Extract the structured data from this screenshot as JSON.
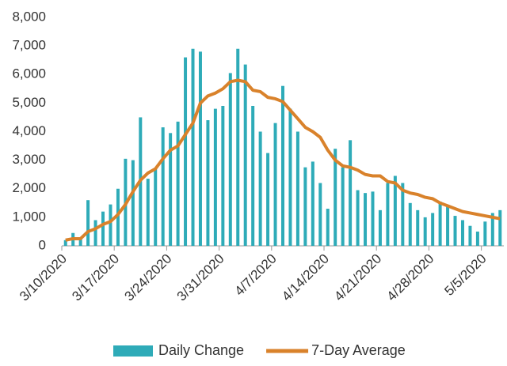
{
  "chart_data": {
    "type": "bar_line",
    "categories": [
      "3/10/2020",
      null,
      null,
      null,
      null,
      null,
      null,
      "3/17/2020",
      null,
      null,
      null,
      null,
      null,
      null,
      "3/24/2020",
      null,
      null,
      null,
      null,
      null,
      null,
      "3/31/2020",
      null,
      null,
      null,
      null,
      null,
      null,
      "4/7/2020",
      null,
      null,
      null,
      null,
      null,
      null,
      "4/14/2020",
      null,
      null,
      null,
      null,
      null,
      null,
      "4/21/2020",
      null,
      null,
      null,
      null,
      null,
      null,
      "4/28/2020",
      null,
      null,
      null,
      null,
      null,
      null,
      "5/5/2020",
      null,
      null
    ],
    "series": [
      {
        "name": "Daily Change",
        "type": "bar",
        "color": "#2eabb8",
        "values": [
          200,
          450,
          300,
          1600,
          900,
          1200,
          1450,
          2000,
          3050,
          3000,
          4500,
          2350,
          2700,
          4150,
          3950,
          4350,
          6600,
          6900,
          6800,
          4400,
          4800,
          4900,
          6050,
          6900,
          6350,
          4900,
          4000,
          3250,
          4300,
          5600,
          4800,
          4000,
          2750,
          2950,
          2200,
          1300,
          3400,
          2750,
          3700,
          1950,
          1850,
          1900,
          1250,
          2200,
          2450,
          2200,
          1500,
          1250,
          1000,
          1150,
          1550,
          1400,
          1050,
          900,
          700,
          500,
          850,
          1150,
          1250
        ]
      },
      {
        "name": "7-Day Average",
        "type": "line",
        "color": "#d9822b",
        "values": [
          200,
          250,
          250,
          500,
          600,
          750,
          850,
          1100,
          1450,
          1900,
          2300,
          2550,
          2700,
          3050,
          3350,
          3500,
          3900,
          4300,
          5000,
          5250,
          5350,
          5500,
          5750,
          5800,
          5750,
          5450,
          5400,
          5200,
          5150,
          5050,
          4750,
          4450,
          4150,
          4000,
          3800,
          3350,
          3000,
          2800,
          2750,
          2650,
          2500,
          2450,
          2450,
          2250,
          2200,
          1950,
          1850,
          1800,
          1700,
          1650,
          1500,
          1400,
          1300,
          1200,
          1150,
          1100,
          1050,
          1000,
          950
        ]
      }
    ],
    "ylim": [
      0,
      8000
    ],
    "yticks": [
      0,
      {
        "value": 1000,
        "label": "1,000"
      },
      {
        "value": 2000,
        "label": "2,000"
      },
      {
        "value": 3000,
        "label": "3,000"
      },
      {
        "value": 4000,
        "label": "4,000"
      },
      {
        "value": 5000,
        "label": "5,000"
      },
      {
        "value": 6000,
        "label": "6,000"
      },
      {
        "value": 7000,
        "label": "7,000"
      },
      {
        "value": 8000,
        "label": "8,000"
      }
    ],
    "grid": false,
    "legend": "bottom"
  }
}
